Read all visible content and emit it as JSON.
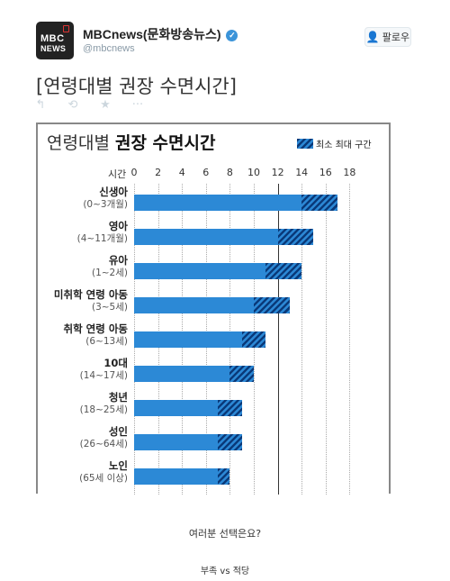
{
  "account": {
    "avatar_line1": "MBC",
    "avatar_line2": "NEWS",
    "name": "MBCnews(문화방송뉴스)",
    "handle": "@mbcnews",
    "follow_label": "팔로우"
  },
  "tweet": {
    "text": "[연령대별 권장 수면시간]"
  },
  "actions": {
    "reply": "↰",
    "retweet": "⟲",
    "favorite": "★",
    "more": "···"
  },
  "chart_data": {
    "type": "bar",
    "title_normal": "연령대별",
    "title_bold": "권장 수면시간",
    "legend": "최소 최대 구간",
    "xlabel": "시간",
    "xlim": [
      0,
      18
    ],
    "xticks": [
      0,
      2,
      4,
      6,
      8,
      10,
      12,
      14,
      16,
      18
    ],
    "reference_line": 12,
    "categories": [
      {
        "name": "신생아",
        "range": "(0~3개월)",
        "min": 14,
        "max": 17
      },
      {
        "name": "영아",
        "range": "(4~11개월)",
        "min": 12,
        "max": 15
      },
      {
        "name": "유아",
        "range": "(1~2세)",
        "min": 11,
        "max": 14
      },
      {
        "name": "미취학 연령 아동",
        "range": "(3~5세)",
        "min": 10,
        "max": 13
      },
      {
        "name": "취학 연령 아동",
        "range": "(6~13세)",
        "min": 9,
        "max": 11
      },
      {
        "name": "10대",
        "range": "(14~17세)",
        "min": 8,
        "max": 10
      },
      {
        "name": "청년",
        "range": "(18~25세)",
        "min": 7,
        "max": 9
      },
      {
        "name": "성인",
        "range": "(26~64세)",
        "min": 7,
        "max": 9
      },
      {
        "name": "노인",
        "range": "(65세 이상)",
        "min": 7,
        "max": 8
      }
    ]
  },
  "footer": {
    "question": "여러분 선택은요?",
    "choice": "부족 vs 적당"
  }
}
